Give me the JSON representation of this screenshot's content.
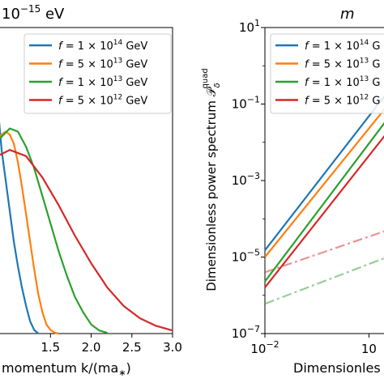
{
  "chart_data": [
    {
      "type": "line",
      "title_prefix": "10",
      "title_exp": "−15",
      "title_unit": " eV",
      "xlabel": "momentum k/(ma",
      "xlabel_sub": "∗",
      "xlabel_close": ")",
      "ylabel": "",
      "xlim": [
        0.85,
        3.0
      ],
      "ylim": [
        0,
        1.0
      ],
      "xticks": [
        "1.5",
        "2.0",
        "2.5",
        "3.0"
      ],
      "xtick_values": [
        1.5,
        2.0,
        2.5,
        3.0
      ],
      "legend_position": "upper-right",
      "series": [
        {
          "name_mant": "1",
          "name_exp": "14",
          "color": "#1f77b4",
          "x": [
            0.85,
            0.9,
            1.0,
            1.05,
            1.1,
            1.15,
            1.2,
            1.25,
            1.3,
            1.35
          ],
          "y": [
            0.75,
            0.6,
            0.4,
            0.3,
            0.22,
            0.15,
            0.09,
            0.04,
            0.012,
            0.0
          ]
        },
        {
          "name_mant": "5",
          "name_exp": "13",
          "color": "#ff7f0e",
          "x": [
            0.85,
            0.95,
            1.0,
            1.05,
            1.1,
            1.15,
            1.2,
            1.25,
            1.3,
            1.35,
            1.4,
            1.45,
            1.5,
            1.55,
            1.6
          ],
          "y": [
            0.64,
            0.66,
            0.65,
            0.62,
            0.56,
            0.48,
            0.39,
            0.3,
            0.21,
            0.13,
            0.07,
            0.03,
            0.012,
            0.003,
            0.0
          ]
        },
        {
          "name_mant": "1",
          "name_exp": "13",
          "color": "#2ca02c",
          "x": [
            0.85,
            1.0,
            1.1,
            1.2,
            1.3,
            1.4,
            1.5,
            1.6,
            1.7,
            1.8,
            1.9,
            2.0,
            2.1,
            2.2
          ],
          "y": [
            0.63,
            0.67,
            0.66,
            0.61,
            0.54,
            0.45,
            0.36,
            0.27,
            0.19,
            0.12,
            0.07,
            0.03,
            0.01,
            0.002
          ]
        },
        {
          "name_mant": "5",
          "name_exp": "12",
          "color": "#d62728",
          "x": [
            0.85,
            1.0,
            1.2,
            1.4,
            1.6,
            1.8,
            2.0,
            2.2,
            2.4,
            2.6,
            2.8,
            3.0
          ],
          "y": [
            0.58,
            0.6,
            0.58,
            0.51,
            0.42,
            0.32,
            0.23,
            0.15,
            0.09,
            0.05,
            0.025,
            0.01
          ]
        }
      ],
      "legend_unit": " GeV"
    },
    {
      "type": "line",
      "title": "m",
      "xlabel": "Dimensionles",
      "ylabel": "Dimensionless power spectrum 𝒫",
      "ylabel_sub": "δ",
      "ylabel_sup": "quad",
      "xscale": "log",
      "yscale": "log",
      "xlim": [
        0.01,
        0.15
      ],
      "ylim": [
        1e-07,
        10
      ],
      "xticks": [
        "10",
        "10"
      ],
      "xtick_exps": [
        "−2",
        ""
      ],
      "xtick_values": [
        0.01,
        0.1
      ],
      "yticks": [
        "10",
        "10",
        "10",
        "10",
        "10"
      ],
      "ytick_exps": [
        "1",
        "−1",
        "−3",
        "−5",
        "−7"
      ],
      "ytick_values": [
        10,
        0.1,
        0.001,
        1e-05,
        1e-07
      ],
      "legend_position": "upper-left",
      "series": [
        {
          "name_mant": "1",
          "name_exp": "14",
          "color": "#1f77b4",
          "x": [
            0.01,
            0.15
          ],
          "y": [
            1.5e-05,
            0.2
          ]
        },
        {
          "name_mant": "5",
          "name_exp": "13",
          "color": "#ff7f0e",
          "x": [
            0.01,
            0.15
          ],
          "y": [
            1e-05,
            0.09
          ]
        },
        {
          "name_mant": "1",
          "name_exp": "13",
          "color": "#2ca02c",
          "x": [
            0.01,
            0.15
          ],
          "y": [
            2.3e-06,
            0.04
          ]
        },
        {
          "name_mant": "5",
          "name_exp": "12",
          "color": "#d62728",
          "x": [
            0.01,
            0.15
          ],
          "y": [
            1.6e-06,
            0.018
          ]
        }
      ],
      "dashed_series": [
        {
          "color": "#d62728",
          "x": [
            0.01,
            0.15
          ],
          "y": [
            4e-06,
            5e-05
          ]
        },
        {
          "color": "#2ca02c",
          "x": [
            0.01,
            0.15
          ],
          "y": [
            6e-07,
            1e-05
          ]
        }
      ],
      "legend_unit": " G"
    }
  ]
}
